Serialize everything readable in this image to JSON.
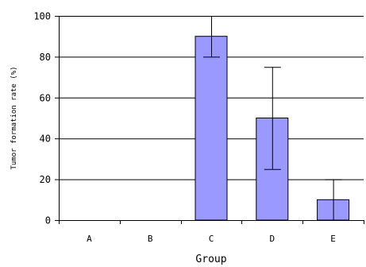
{
  "chart_data": {
    "type": "bar",
    "categories": [
      "A",
      "B",
      "C",
      "D",
      "E"
    ],
    "values": [
      0,
      0,
      90,
      50,
      10
    ],
    "error_bars": [
      {
        "low": 0,
        "high": 0
      },
      {
        "low": 0,
        "high": 0
      },
      {
        "low": 80,
        "high": 100
      },
      {
        "low": 25,
        "high": 75
      },
      {
        "low": 0,
        "high": 20
      }
    ],
    "title": "",
    "xlabel": "Group",
    "ylabel": "Tumor formation rate (%)",
    "ylim": [
      0,
      100
    ],
    "yticks": [
      0,
      20,
      40,
      60,
      80,
      100
    ],
    "grid": "horizontal",
    "legend": "none",
    "colors": {
      "bar": "#9999ff",
      "bar_edge": "#000000",
      "grid": "#000000",
      "axis": "#000000"
    }
  }
}
